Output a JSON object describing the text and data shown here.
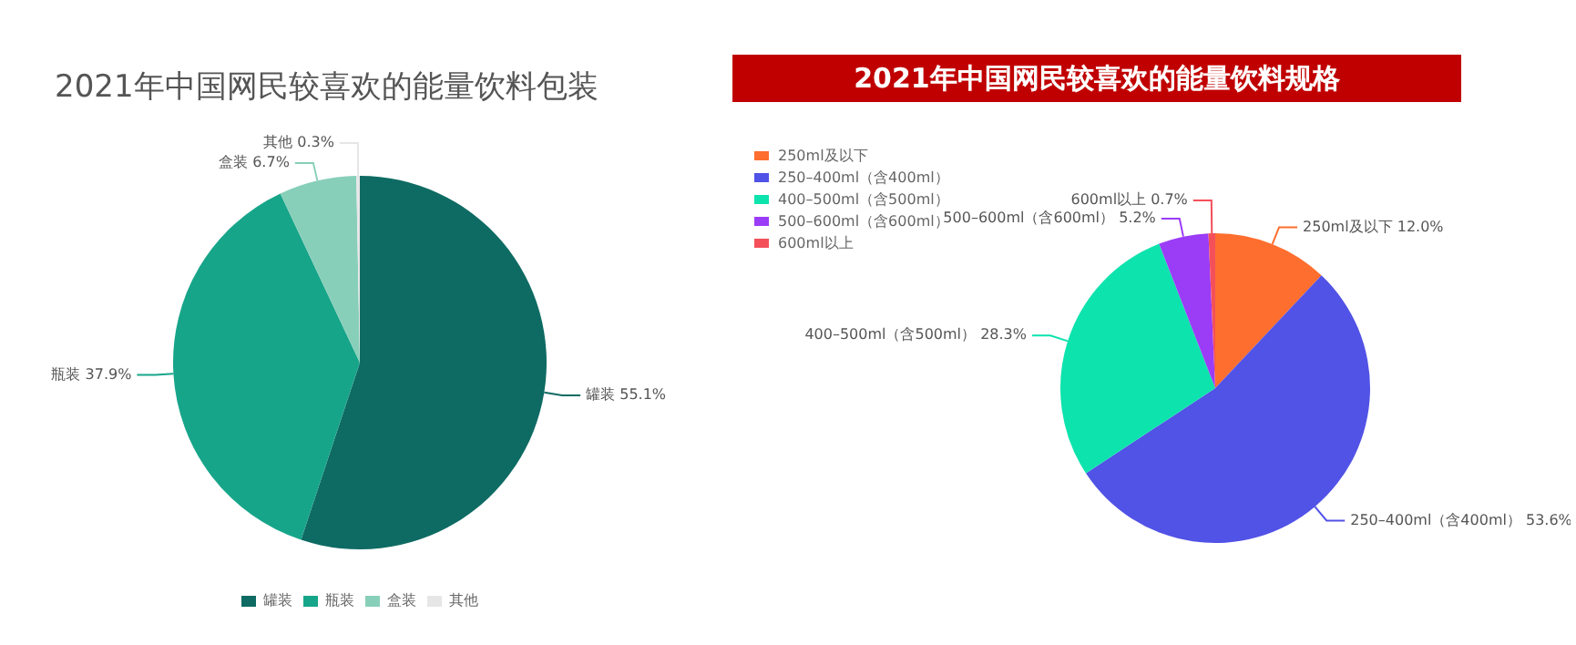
{
  "chart_data": [
    {
      "type": "pie",
      "title": "2021年中国网民较喜欢的能量饮料包装",
      "categories": [
        "罐装",
        "瓶装",
        "盒装",
        "其他"
      ],
      "values": [
        55.1,
        37.9,
        6.7,
        0.3
      ],
      "colors": [
        "#0e6b63",
        "#17a58a",
        "#88cfb9",
        "#e6e6e6"
      ],
      "value_labels": [
        "55.1%",
        "37.9%",
        "6.7%",
        "0.3%"
      ],
      "legend": "bottom"
    },
    {
      "type": "pie",
      "title": "2021年中国网民较喜欢的能量饮料规格",
      "categories": [
        "250ml及以下",
        "250–400ml（含400ml）",
        "400–500ml（含500ml）",
        "500–600ml（含600ml）",
        "600ml以上"
      ],
      "values": [
        12.0,
        53.6,
        28.3,
        5.2,
        0.7
      ],
      "colors": [
        "#fe6e2e",
        "#5152e6",
        "#0de3ad",
        "#9b3cf6",
        "#f4505a"
      ],
      "value_labels": [
        "12.0%",
        "53.6%",
        "28.3%",
        "5.2%",
        "0.7%"
      ],
      "legend": "top left"
    }
  ]
}
